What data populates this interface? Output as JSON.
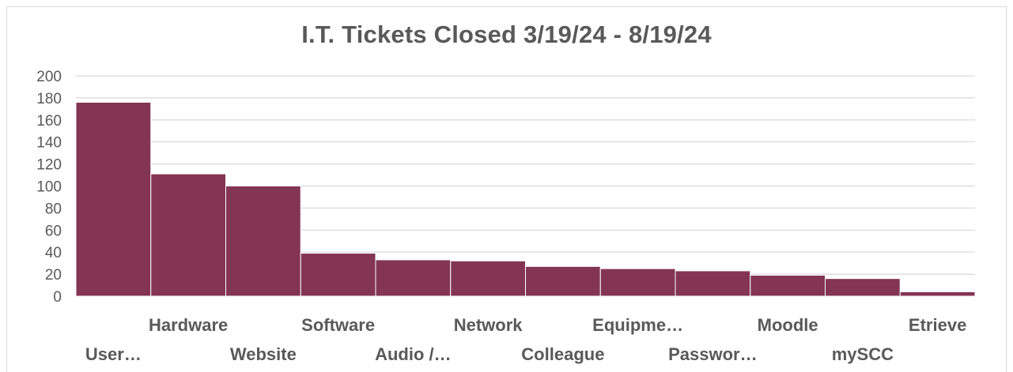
{
  "chart_data": {
    "type": "bar",
    "title": "I.T. Tickets Closed 3/19/24 - 8/19/24",
    "xlabel": "",
    "ylabel": "",
    "ylim": [
      0,
      200
    ],
    "yticks": [
      "0",
      "20",
      "40",
      "60",
      "80",
      "100",
      "120",
      "140",
      "160",
      "180",
      "200"
    ],
    "grid": true,
    "legend": "none",
    "categories": [
      "User…",
      "Hardware",
      "Website",
      "Software",
      "Audio /…",
      "Network",
      "Colleague",
      "Equipme…",
      "Passwor…",
      "Moodle",
      "mySCC",
      "Etrieve"
    ],
    "values": [
      176,
      111,
      100,
      39,
      33,
      32,
      27,
      25,
      23,
      19,
      16,
      4
    ],
    "colors": {
      "bar": "#833552",
      "bar_edge": "#ffffff",
      "grid": "#d9d9d9",
      "text": "#595959"
    }
  }
}
